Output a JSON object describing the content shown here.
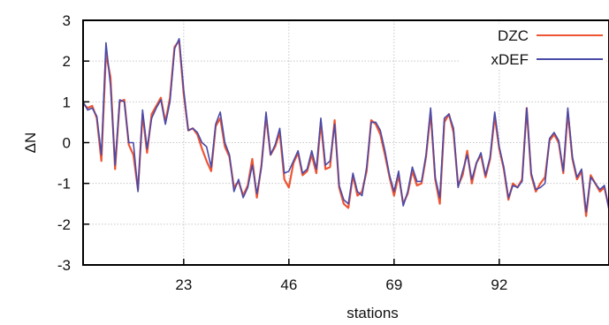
{
  "chart_data": {
    "type": "line",
    "title": "",
    "xlabel": "stations",
    "ylabel": "ΔN",
    "xlim": [
      1,
      116
    ],
    "ylim": [
      -3,
      3
    ],
    "xticks": [
      23,
      46,
      69,
      92
    ],
    "yticks": [
      -3,
      -2,
      -1,
      0,
      1,
      2,
      3
    ],
    "grid": true,
    "legend_position": "top-right",
    "x": [
      1,
      2,
      3,
      4,
      5,
      6,
      7,
      8,
      9,
      10,
      11,
      12,
      13,
      14,
      15,
      16,
      17,
      18,
      19,
      20,
      21,
      22,
      23,
      24,
      25,
      26,
      27,
      28,
      29,
      30,
      31,
      32,
      33,
      34,
      35,
      36,
      37,
      38,
      39,
      40,
      41,
      42,
      43,
      44,
      45,
      46,
      47,
      48,
      49,
      50,
      51,
      52,
      53,
      54,
      55,
      56,
      57,
      58,
      59,
      60,
      61,
      62,
      63,
      64,
      65,
      66,
      67,
      68,
      69,
      70,
      71,
      72,
      73,
      74,
      75,
      76,
      77,
      78,
      79,
      80,
      81,
      82,
      83,
      84,
      85,
      86,
      87,
      88,
      89,
      90,
      91,
      92,
      93,
      94,
      95,
      96,
      97,
      98,
      99,
      100,
      101,
      102,
      103,
      104,
      105,
      106,
      107,
      108,
      109,
      110,
      111,
      112,
      113,
      114,
      115,
      116
    ],
    "series": [
      {
        "name": "DZC",
        "color": "#ee5533",
        "values": [
          0.95,
          0.85,
          0.9,
          0.6,
          -0.45,
          2.2,
          1.6,
          -0.65,
          1.0,
          1.05,
          -0.05,
          -0.3,
          -1.15,
          0.7,
          -0.25,
          0.7,
          0.9,
          1.1,
          0.5,
          1.1,
          2.35,
          2.5,
          1.2,
          0.3,
          0.35,
          0.2,
          -0.15,
          -0.45,
          -0.7,
          0.4,
          0.6,
          -0.1,
          -0.35,
          -1.1,
          -0.95,
          -1.3,
          -1.05,
          -0.4,
          -1.35,
          -0.55,
          0.65,
          -0.3,
          -0.1,
          0.25,
          -0.9,
          -1.1,
          -0.5,
          -0.25,
          -0.8,
          -0.7,
          -0.3,
          -0.75,
          0.5,
          -0.65,
          -0.6,
          0.55,
          -1.1,
          -1.5,
          -1.6,
          -0.8,
          -1.3,
          -1.2,
          -0.7,
          0.55,
          0.45,
          0.2,
          -0.3,
          -0.85,
          -1.3,
          -0.8,
          -1.5,
          -1.25,
          -0.7,
          -1.05,
          -1.0,
          -0.35,
          0.75,
          -0.9,
          -1.5,
          0.5,
          0.7,
          0.25,
          -1.05,
          -0.8,
          -0.2,
          -1.0,
          -0.5,
          -0.3,
          -0.85,
          -0.4,
          0.65,
          -0.15,
          -0.65,
          -1.4,
          -1.0,
          -1.1,
          -0.9,
          0.85,
          -0.8,
          -1.2,
          -1.0,
          -0.85,
          0.05,
          0.2,
          0.0,
          -0.75,
          0.75,
          -0.4,
          -0.9,
          -0.7,
          -1.8,
          -0.8,
          -1.0,
          -1.2,
          -1.1,
          -1.6
        ]
      },
      {
        "name": "xDEF",
        "color": "#4a4aa8",
        "values": [
          1.0,
          0.8,
          0.85,
          0.65,
          -0.3,
          2.45,
          1.4,
          -0.55,
          1.05,
          1.0,
          0.0,
          0.0,
          -1.2,
          0.8,
          -0.15,
          0.6,
          0.85,
          1.05,
          0.45,
          1.0,
          2.3,
          2.55,
          1.3,
          0.3,
          0.35,
          0.25,
          0.0,
          -0.1,
          -0.6,
          0.45,
          0.75,
          0.0,
          -0.3,
          -1.2,
          -0.9,
          -1.35,
          -1.1,
          -0.55,
          -1.25,
          -0.6,
          0.75,
          -0.3,
          -0.05,
          0.35,
          -0.75,
          -0.7,
          -0.45,
          -0.2,
          -0.75,
          -0.65,
          -0.2,
          -0.65,
          0.6,
          -0.55,
          -0.45,
          0.45,
          -1.05,
          -1.4,
          -1.5,
          -0.75,
          -1.2,
          -1.3,
          -0.6,
          0.5,
          0.5,
          0.3,
          -0.2,
          -0.8,
          -1.2,
          -0.7,
          -1.55,
          -1.2,
          -0.6,
          -0.95,
          -0.95,
          -0.3,
          0.85,
          -0.85,
          -1.35,
          0.6,
          0.7,
          0.35,
          -1.1,
          -0.7,
          -0.3,
          -0.9,
          -0.5,
          -0.25,
          -0.8,
          -0.35,
          0.75,
          -0.1,
          -0.6,
          -1.35,
          -1.05,
          -1.1,
          -0.95,
          0.85,
          -0.75,
          -1.15,
          -1.1,
          -1.0,
          0.1,
          0.25,
          0.05,
          -0.7,
          0.85,
          -0.35,
          -0.85,
          -0.65,
          -1.7,
          -0.85,
          -1.0,
          -1.15,
          -1.05,
          -1.65
        ]
      }
    ]
  }
}
